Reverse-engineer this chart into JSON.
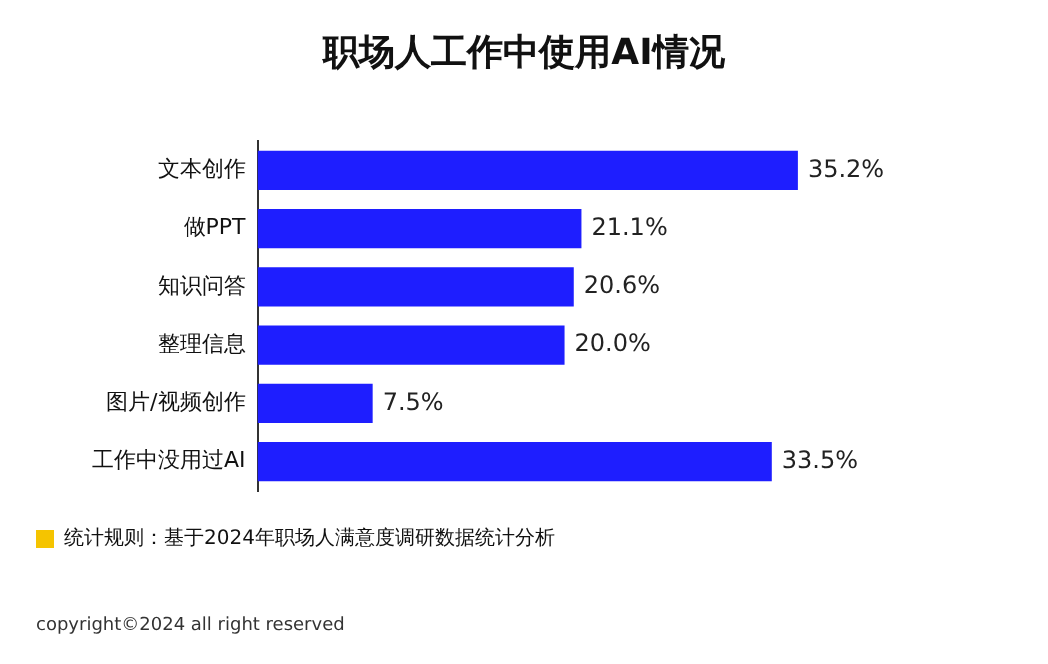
{
  "chart_data": {
    "type": "bar",
    "orientation": "horizontal",
    "title": "职场人工作中使用AI情况",
    "categories": [
      "文本创作",
      "做PPT",
      "知识问答",
      "整理信息",
      "图片/视频创作",
      "工作中没用过AI"
    ],
    "values": [
      35.2,
      21.1,
      20.6,
      20.0,
      7.5,
      33.5
    ],
    "value_labels": [
      "35.2%",
      "21.1%",
      "20.6%",
      "20.0%",
      "7.5%",
      "33.5%"
    ],
    "color": "#1e1eff",
    "annotations": [
      "统计规则：基于2024年职场人满意度调研数据统计分析",
      "copyright©2024 all right reserved"
    ]
  }
}
